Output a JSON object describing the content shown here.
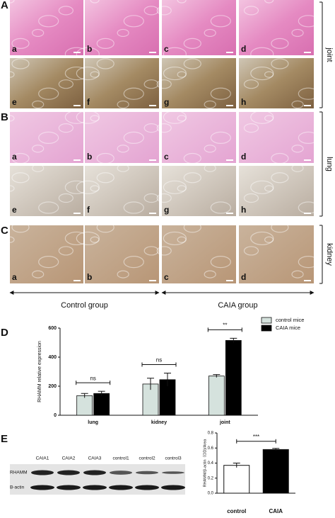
{
  "figure": {
    "panel_labels": [
      "A",
      "B",
      "C",
      "D",
      "E"
    ],
    "rows": [
      {
        "tissue": "joint",
        "top": [
          "a",
          "b",
          "c",
          "d"
        ],
        "bottom": [
          "e",
          "f",
          "g",
          "h"
        ]
      },
      {
        "tissue": "lung",
        "top": [
          "a",
          "b",
          "c",
          "d"
        ],
        "bottom": [
          "e",
          "f",
          "g",
          "h"
        ]
      },
      {
        "tissue": "kidney",
        "top": [
          "a",
          "b",
          "c",
          "d"
        ]
      }
    ],
    "groups": [
      "Control group",
      "CAIA  group"
    ],
    "blot": {
      "lanes": [
        "CAIA1",
        "CAIA2",
        "CAIA3",
        "control1",
        "control2",
        "control3"
      ],
      "proteins": [
        "RHAMM",
        "B-actin"
      ]
    }
  },
  "chart_data": [
    {
      "type": "bar",
      "ylabel": "RHAMM relative expression",
      "categories": [
        "lung",
        "kidney",
        "joint"
      ],
      "series": [
        {
          "name": "control mice",
          "color": "#d5e2dd",
          "values": [
            135,
            215,
            270
          ],
          "errors": [
            15,
            40,
            10
          ]
        },
        {
          "name": "CAIA mice",
          "color": "#000000",
          "values": [
            150,
            245,
            515
          ],
          "errors": [
            15,
            45,
            15
          ]
        }
      ],
      "annotations": [
        "ns",
        "ns",
        "**"
      ],
      "ylim": [
        0,
        600
      ],
      "yticks": [
        0,
        200,
        400,
        600
      ],
      "legend": "top-right"
    },
    {
      "type": "bar",
      "ylabel": "RHAMM/β-actin（OD)/Area",
      "categories": [
        "control",
        "CAIA"
      ],
      "values": [
        0.37,
        0.58
      ],
      "errors": [
        0.03,
        0.015
      ],
      "colors": [
        "#ffffff",
        "#000000"
      ],
      "annotation": "***",
      "ylim": [
        0,
        0.8
      ],
      "yticks": [
        {
          "value": 0,
          "label": "0.0"
        },
        0.2,
        0.4,
        0.6,
        0.8
      ]
    }
  ]
}
